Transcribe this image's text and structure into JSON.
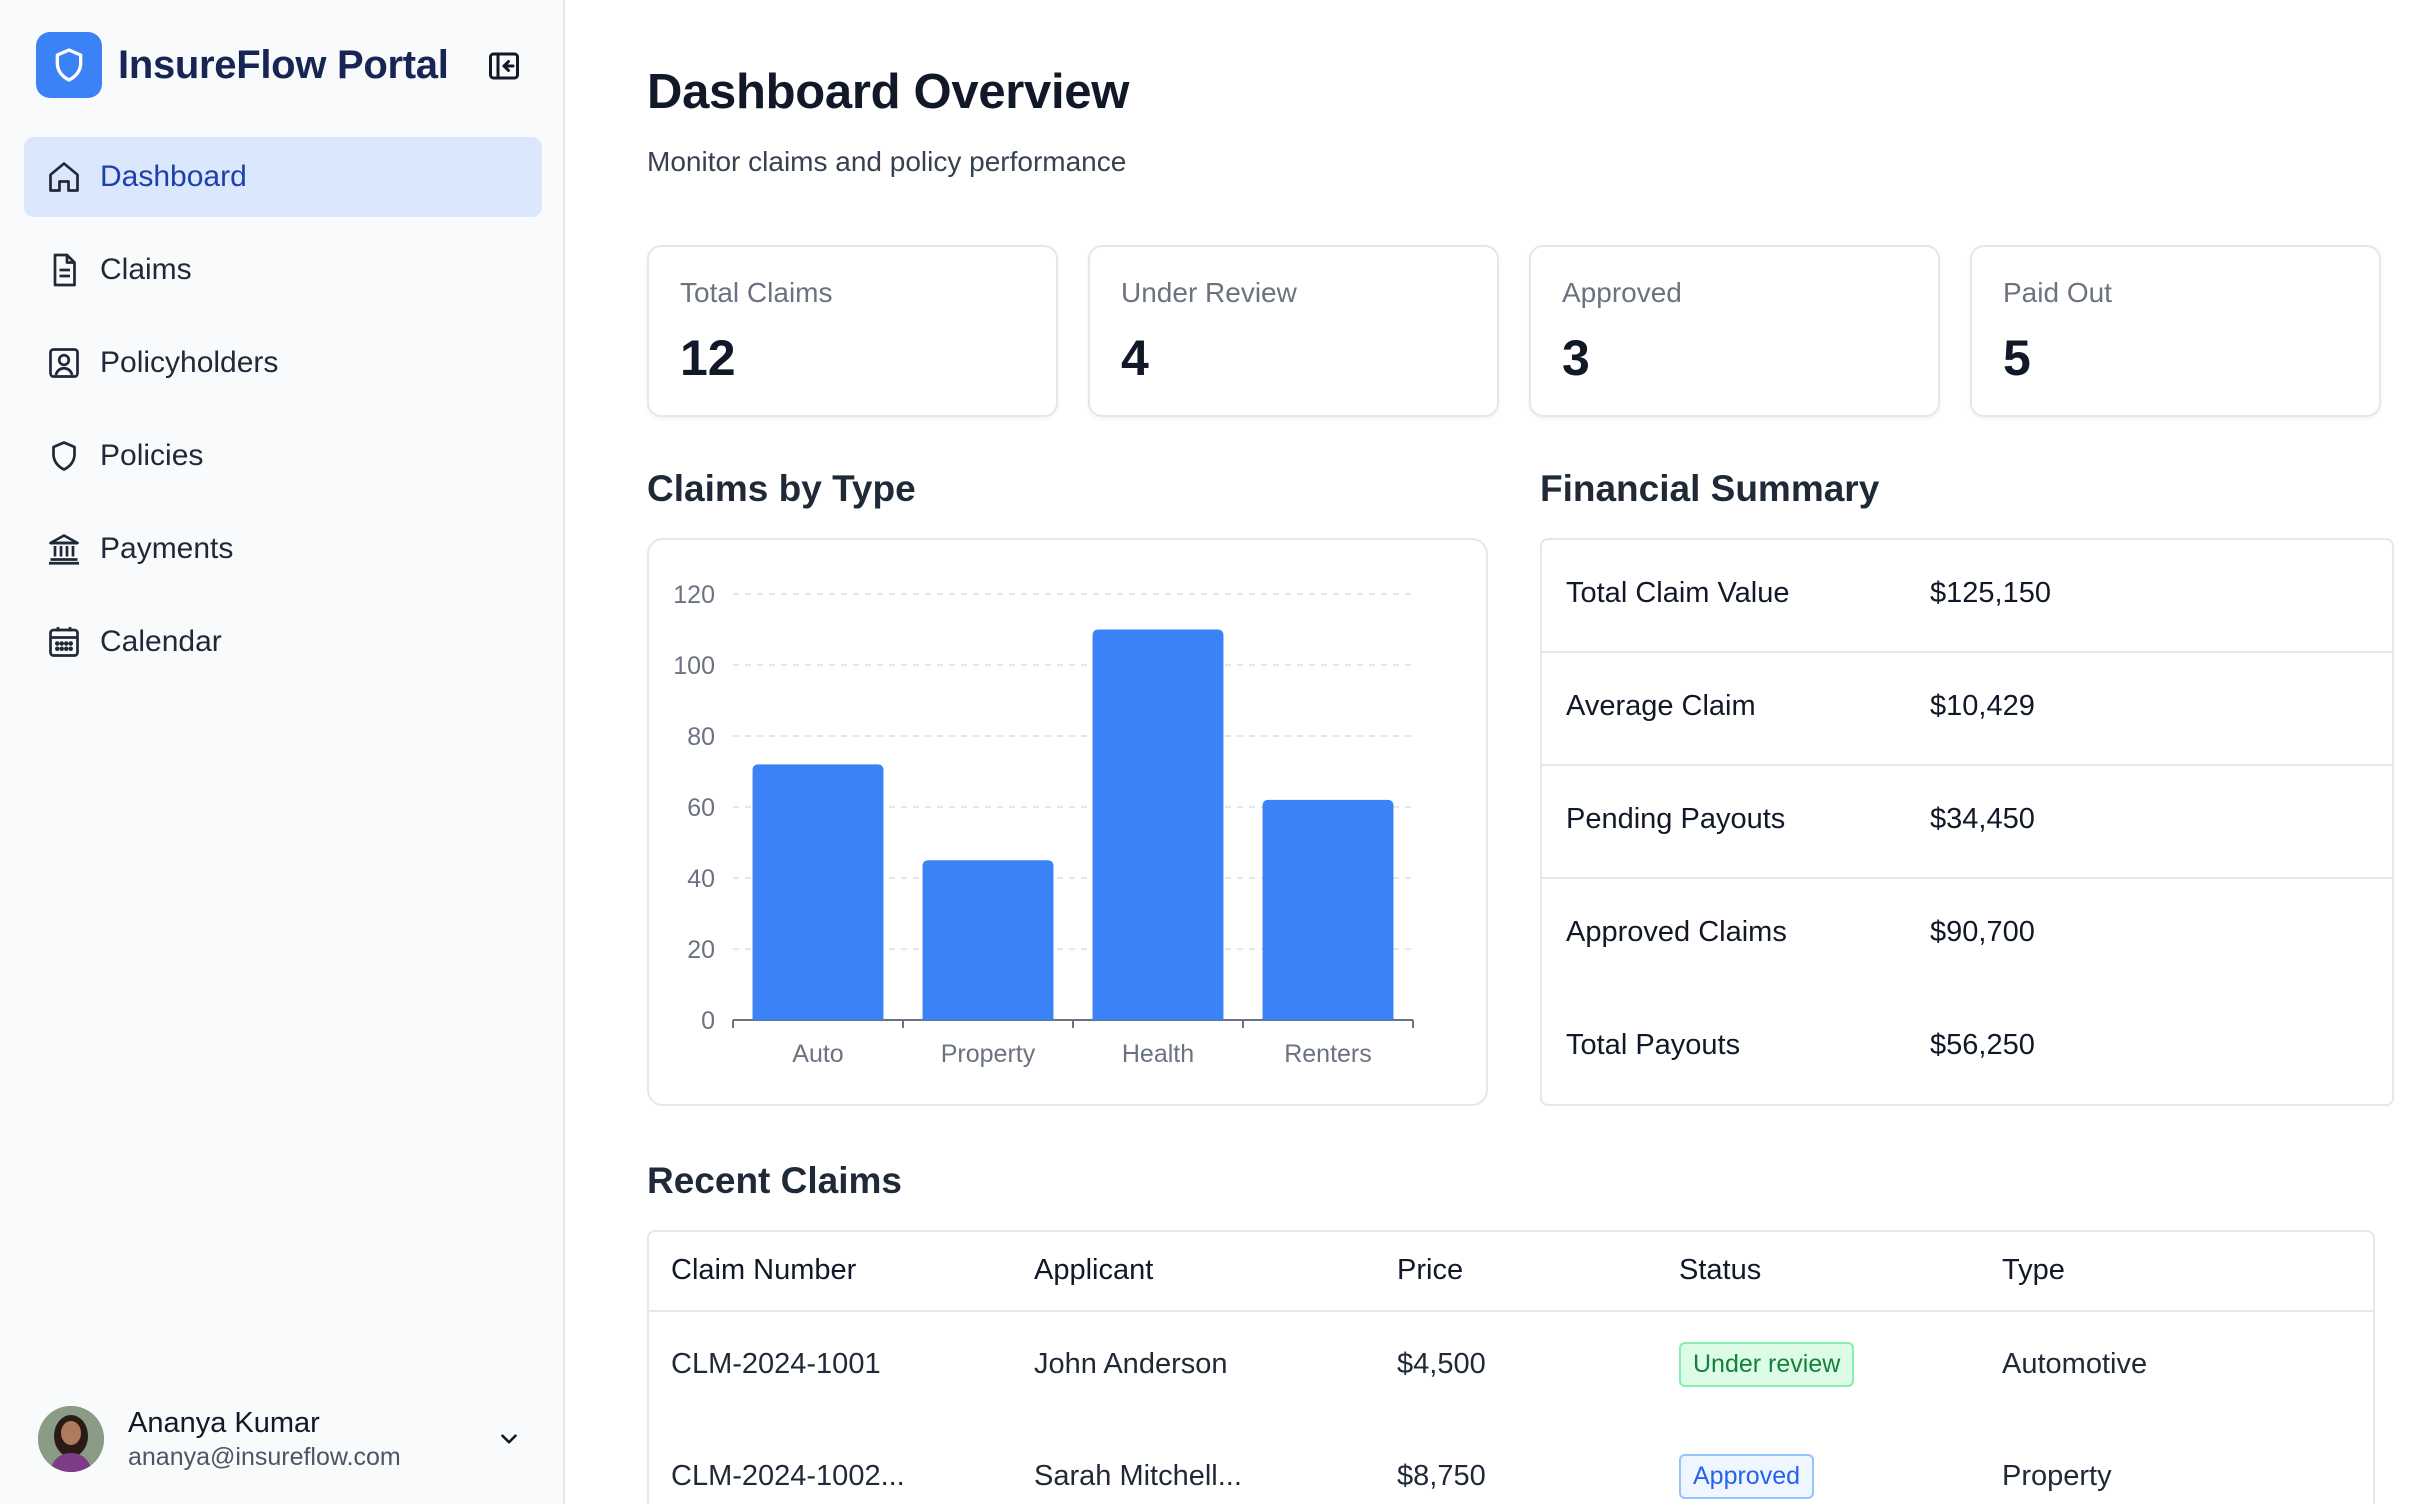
{
  "app": {
    "name": "InsureFlow Portal"
  },
  "sidebar": {
    "items": [
      {
        "label": "Dashboard",
        "icon": "home-icon",
        "active": true
      },
      {
        "label": "Claims",
        "icon": "document-icon"
      },
      {
        "label": "Policyholders",
        "icon": "user-card-icon"
      },
      {
        "label": "Policies",
        "icon": "shield-icon"
      },
      {
        "label": "Payments",
        "icon": "bank-icon"
      },
      {
        "label": "Calendar",
        "icon": "calendar-icon"
      }
    ],
    "user": {
      "name": "Ananya Kumar",
      "email": "ananya@insureflow.com"
    }
  },
  "header": {
    "title": "Dashboard Overview",
    "subtitle": "Monitor claims and policy performance"
  },
  "stats": [
    {
      "label": "Total Claims",
      "value": "12"
    },
    {
      "label": "Under Review",
      "value": "4"
    },
    {
      "label": "Approved",
      "value": "3"
    },
    {
      "label": "Paid Out",
      "value": "5"
    }
  ],
  "sections": {
    "claims_by_type": "Claims by Type",
    "financial_summary": "Financial Summary",
    "recent_claims": "Recent Claims"
  },
  "chart_data": {
    "type": "bar",
    "title": "Claims by Type",
    "categories": [
      "Auto",
      "Property",
      "Health",
      "Renters"
    ],
    "values": [
      72,
      45,
      110,
      62
    ],
    "ylim": [
      0,
      120
    ],
    "yticks": [
      0,
      20,
      40,
      60,
      80,
      100,
      120
    ],
    "grid": true,
    "bar_color": "#3b82f6",
    "xlabel": "",
    "ylabel": ""
  },
  "financial_summary": [
    {
      "label": "Total Claim Value",
      "value": "$125,150"
    },
    {
      "label": "Average Claim",
      "value": "$10,429"
    },
    {
      "label": "Pending Payouts",
      "value": "$34,450"
    },
    {
      "label": "Approved Claims",
      "value": "$90,700"
    },
    {
      "label": "Total Payouts",
      "value": "$56,250"
    }
  ],
  "recent_claims": {
    "columns": [
      "Claim Number",
      "Applicant",
      "Price",
      "Status",
      "Type"
    ],
    "rows": [
      {
        "claim": "CLM-2024-1001",
        "applicant": "John Anderson",
        "price": "$4,500",
        "status": "Under review",
        "type": "Automotive"
      },
      {
        "claim": "CLM-2024-1002...",
        "applicant": "Sarah Mitchell...",
        "price": "$8,750",
        "status": "Approved",
        "type": "Property"
      }
    ]
  },
  "colors": {
    "accent": "#3b82f6",
    "active_nav_bg": "#dbe7fd",
    "brand_text": "#172554",
    "status_review": "#15803d",
    "status_approved": "#2563eb"
  }
}
